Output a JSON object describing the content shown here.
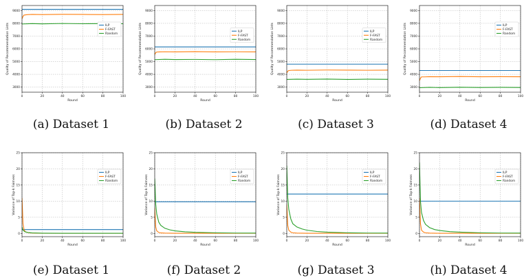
{
  "colors": {
    "ILP": "#1f77b4",
    "F-FAST": "#ff7f0e",
    "Random": "#2ca02c"
  },
  "chart_data": [
    {
      "panel": "a",
      "caption": "(a) Dataset 1",
      "type": "line",
      "xlabel": "Round",
      "ylabel": "Quality of Recommendation Lists",
      "xlim": [
        0,
        100
      ],
      "ylim": [
        2600,
        9400
      ],
      "xticks": [
        0,
        20,
        40,
        60,
        80,
        100
      ],
      "yticks": [
        3000,
        4000,
        5000,
        6000,
        7000,
        8000,
        9000
      ],
      "grid": true,
      "legend": "top-right",
      "series": [
        {
          "name": "ILP",
          "x": [
            0,
            100
          ],
          "y": [
            9100,
            9100
          ]
        },
        {
          "name": "F-FAST",
          "x": [
            0,
            1,
            2,
            5,
            10,
            20,
            40,
            60,
            80,
            100
          ],
          "y": [
            8350,
            8550,
            8650,
            8680,
            8700,
            8690,
            8710,
            8700,
            8690,
            8700
          ]
        },
        {
          "name": "Random",
          "x": [
            0,
            10,
            20,
            40,
            60,
            80,
            100
          ],
          "y": [
            7950,
            7980,
            7960,
            7990,
            7970,
            7980,
            7970
          ]
        }
      ]
    },
    {
      "panel": "b",
      "caption": "(b) Dataset 2",
      "type": "line",
      "xlabel": "Round",
      "ylabel": "Quality of Recommendation Lists",
      "xlim": [
        0,
        100
      ],
      "ylim": [
        2600,
        9400
      ],
      "xticks": [
        0,
        20,
        40,
        60,
        80,
        100
      ],
      "yticks": [
        3000,
        4000,
        5000,
        6000,
        7000,
        8000,
        9000
      ],
      "grid": true,
      "legend": "right",
      "series": [
        {
          "name": "ILP",
          "x": [
            0,
            100
          ],
          "y": [
            6150,
            6150
          ]
        },
        {
          "name": "F-FAST",
          "x": [
            0,
            1,
            2,
            5,
            10,
            20,
            40,
            60,
            80,
            100
          ],
          "y": [
            5550,
            5700,
            5750,
            5760,
            5770,
            5760,
            5780,
            5760,
            5770,
            5760
          ]
        },
        {
          "name": "Random",
          "x": [
            0,
            10,
            20,
            40,
            60,
            80,
            100
          ],
          "y": [
            5150,
            5180,
            5160,
            5170,
            5150,
            5180,
            5160
          ]
        }
      ]
    },
    {
      "panel": "c",
      "caption": "(c) Dataset 3",
      "type": "line",
      "xlabel": "Round",
      "ylabel": "Quality of Recommendation Lists",
      "xlim": [
        0,
        100
      ],
      "ylim": [
        2600,
        9400
      ],
      "xticks": [
        0,
        20,
        40,
        60,
        80,
        100
      ],
      "yticks": [
        3000,
        4000,
        5000,
        6000,
        7000,
        8000,
        9000
      ],
      "grid": true,
      "legend": "right",
      "series": [
        {
          "name": "ILP",
          "x": [
            0,
            100
          ],
          "y": [
            4800,
            4800
          ]
        },
        {
          "name": "F-FAST",
          "x": [
            0,
            1,
            2,
            5,
            10,
            20,
            40,
            60,
            80,
            100
          ],
          "y": [
            4100,
            4250,
            4300,
            4320,
            4330,
            4320,
            4340,
            4330,
            4320,
            4330
          ]
        },
        {
          "name": "Random",
          "x": [
            0,
            10,
            20,
            40,
            60,
            80,
            100
          ],
          "y": [
            3600,
            3620,
            3610,
            3630,
            3600,
            3620,
            3610
          ]
        }
      ]
    },
    {
      "panel": "d",
      "caption": "(d) Dataset 4",
      "type": "line",
      "xlabel": "Round",
      "ylabel": "Quality of Recommendation Lists",
      "xlim": [
        0,
        100
      ],
      "ylim": [
        2600,
        9400
      ],
      "xticks": [
        0,
        20,
        40,
        60,
        80,
        100
      ],
      "yticks": [
        3000,
        4000,
        5000,
        6000,
        7000,
        8000,
        9000
      ],
      "grid": true,
      "legend": "top-right",
      "series": [
        {
          "name": "ILP",
          "x": [
            0,
            100
          ],
          "y": [
            4300,
            4300
          ]
        },
        {
          "name": "F-FAST",
          "x": [
            0,
            1,
            2,
            5,
            10,
            20,
            40,
            60,
            80,
            100
          ],
          "y": [
            3500,
            3700,
            3800,
            3800,
            3820,
            3810,
            3830,
            3810,
            3820,
            3810
          ]
        },
        {
          "name": "Random",
          "x": [
            0,
            10,
            20,
            40,
            60,
            80,
            100
          ],
          "y": [
            2950,
            2980,
            2960,
            2990,
            2970,
            2980,
            2970
          ]
        }
      ]
    },
    {
      "panel": "e",
      "caption": "(e) Dataset 1",
      "type": "line",
      "xlabel": "Round",
      "ylabel": "Variance of Top-k Fairness",
      "xlim": [
        0,
        100
      ],
      "ylim": [
        -1,
        25
      ],
      "xticks": [
        0,
        20,
        40,
        60,
        80,
        100
      ],
      "yticks": [
        0,
        5,
        10,
        15,
        20,
        25
      ],
      "grid": true,
      "legend": "top-right",
      "series": [
        {
          "name": "ILP",
          "x": [
            0,
            100
          ],
          "y": [
            1.2,
            1.2
          ]
        },
        {
          "name": "F-FAST",
          "x": [
            0,
            1,
            2,
            3,
            5,
            8,
            12,
            20,
            100
          ],
          "y": [
            11,
            3,
            1.2,
            0.6,
            0.3,
            0.15,
            0.1,
            0.05,
            0.05
          ]
        },
        {
          "name": "Random",
          "x": [
            0,
            1,
            3,
            6,
            10,
            20,
            40,
            100
          ],
          "y": [
            2,
            1,
            0.5,
            0.3,
            0.15,
            0.08,
            0.05,
            0.05
          ]
        }
      ]
    },
    {
      "panel": "f",
      "caption": "(f) Dataset 2",
      "type": "line",
      "xlabel": "Round",
      "ylabel": "Variance of Top-k Fairness",
      "xlim": [
        0,
        100
      ],
      "ylim": [
        -1,
        25
      ],
      "xticks": [
        0,
        20,
        40,
        60,
        80,
        100
      ],
      "yticks": [
        0,
        5,
        10,
        15,
        20,
        25
      ],
      "grid": true,
      "legend": "top-right",
      "series": [
        {
          "name": "ILP",
          "x": [
            0,
            100
          ],
          "y": [
            9.8,
            9.8
          ]
        },
        {
          "name": "F-FAST",
          "x": [
            0,
            1,
            2,
            4,
            6,
            10,
            20,
            100
          ],
          "y": [
            8,
            2,
            0.8,
            0.3,
            0.15,
            0.1,
            0.05,
            0.05
          ]
        },
        {
          "name": "Random",
          "x": [
            0,
            1,
            2,
            4,
            6,
            10,
            15,
            20,
            30,
            40,
            60,
            80,
            100
          ],
          "y": [
            17,
            9,
            6,
            3.5,
            2.5,
            1.6,
            1.1,
            0.8,
            0.5,
            0.35,
            0.2,
            0.12,
            0.1
          ]
        }
      ]
    },
    {
      "panel": "g",
      "caption": "(g) Dataset 3",
      "type": "line",
      "xlabel": "Round",
      "ylabel": "Variance of Top-k Fairness",
      "xlim": [
        0,
        100
      ],
      "ylim": [
        -1,
        25
      ],
      "xticks": [
        0,
        20,
        40,
        60,
        80,
        100
      ],
      "yticks": [
        0,
        5,
        10,
        15,
        20,
        25
      ],
      "grid": true,
      "legend": "top-right",
      "series": [
        {
          "name": "ILP",
          "x": [
            0,
            100
          ],
          "y": [
            12.2,
            12.2
          ]
        },
        {
          "name": "F-FAST",
          "x": [
            0,
            1,
            2,
            4,
            6,
            10,
            20,
            100
          ],
          "y": [
            9,
            2.5,
            1,
            0.4,
            0.2,
            0.1,
            0.05,
            0.05
          ]
        },
        {
          "name": "Random",
          "x": [
            0,
            1,
            2,
            4,
            6,
            10,
            15,
            20,
            30,
            40,
            60,
            80,
            100
          ],
          "y": [
            21,
            11,
            7.5,
            4.5,
            3,
            2,
            1.4,
            1,
            0.6,
            0.4,
            0.2,
            0.12,
            0.1
          ]
        }
      ]
    },
    {
      "panel": "h",
      "caption": "(h) Dataset 4",
      "type": "line",
      "xlabel": "Round",
      "ylabel": "Variance of Top-k Fairness",
      "xlim": [
        0,
        100
      ],
      "ylim": [
        -1,
        25
      ],
      "xticks": [
        0,
        20,
        40,
        60,
        80,
        100
      ],
      "yticks": [
        0,
        5,
        10,
        15,
        20,
        25
      ],
      "grid": true,
      "legend": "top-right",
      "series": [
        {
          "name": "ILP",
          "x": [
            0,
            100
          ],
          "y": [
            10,
            10
          ]
        },
        {
          "name": "F-FAST",
          "x": [
            0,
            1,
            2,
            4,
            6,
            10,
            20,
            100
          ],
          "y": [
            11,
            3,
            1,
            0.4,
            0.2,
            0.1,
            0.05,
            0.05
          ]
        },
        {
          "name": "Random",
          "x": [
            0,
            1,
            2,
            4,
            6,
            10,
            15,
            20,
            30,
            40,
            60,
            80,
            100
          ],
          "y": [
            22,
            10,
            6.5,
            4,
            2.8,
            1.8,
            1.2,
            0.9,
            0.55,
            0.4,
            0.2,
            0.12,
            0.1
          ]
        }
      ]
    }
  ]
}
